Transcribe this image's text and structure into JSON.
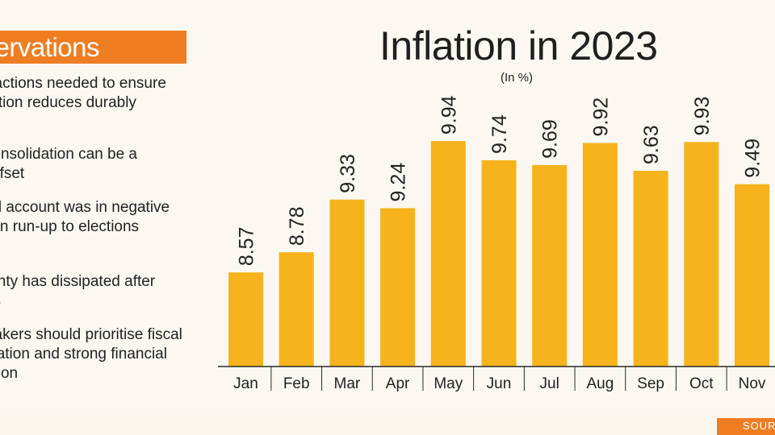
{
  "observations": {
    "header": "Observations",
    "items": [
      "Further actions needed to ensure that inflation reduces durably",
      "Fiscal consolidation can be a strong offset",
      "Financial account was in negative territory in run-up to elections",
      "Uncertainty has dissipated after elections",
      "Policymakers should prioritise fiscal consolidation and strong financial supervision"
    ]
  },
  "source_label": "SOURCE",
  "colors": {
    "bar": "#f6b31c",
    "accent": "#ef7d22",
    "background": "#fbf8f1"
  },
  "chart_data": {
    "type": "bar",
    "title": "Inflation in 2023",
    "subtitle": "(In %)",
    "categories": [
      "Jan",
      "Feb",
      "Mar",
      "Apr",
      "May",
      "Jun",
      "Jul",
      "Aug",
      "Sep",
      "Oct",
      "Nov"
    ],
    "values": [
      8.57,
      8.78,
      9.33,
      9.24,
      9.94,
      9.74,
      9.69,
      9.92,
      9.63,
      9.93,
      9.49
    ],
    "value_labels": [
      "8.57",
      "8.78",
      "9.33",
      "9.24",
      "9.94",
      "9.74",
      "9.69",
      "9.92",
      "9.63",
      "9.93",
      "9.49"
    ],
    "xlabel": "",
    "ylabel": "",
    "ylim": [
      8.0,
      10.0
    ],
    "grid": false,
    "legend": "none"
  }
}
